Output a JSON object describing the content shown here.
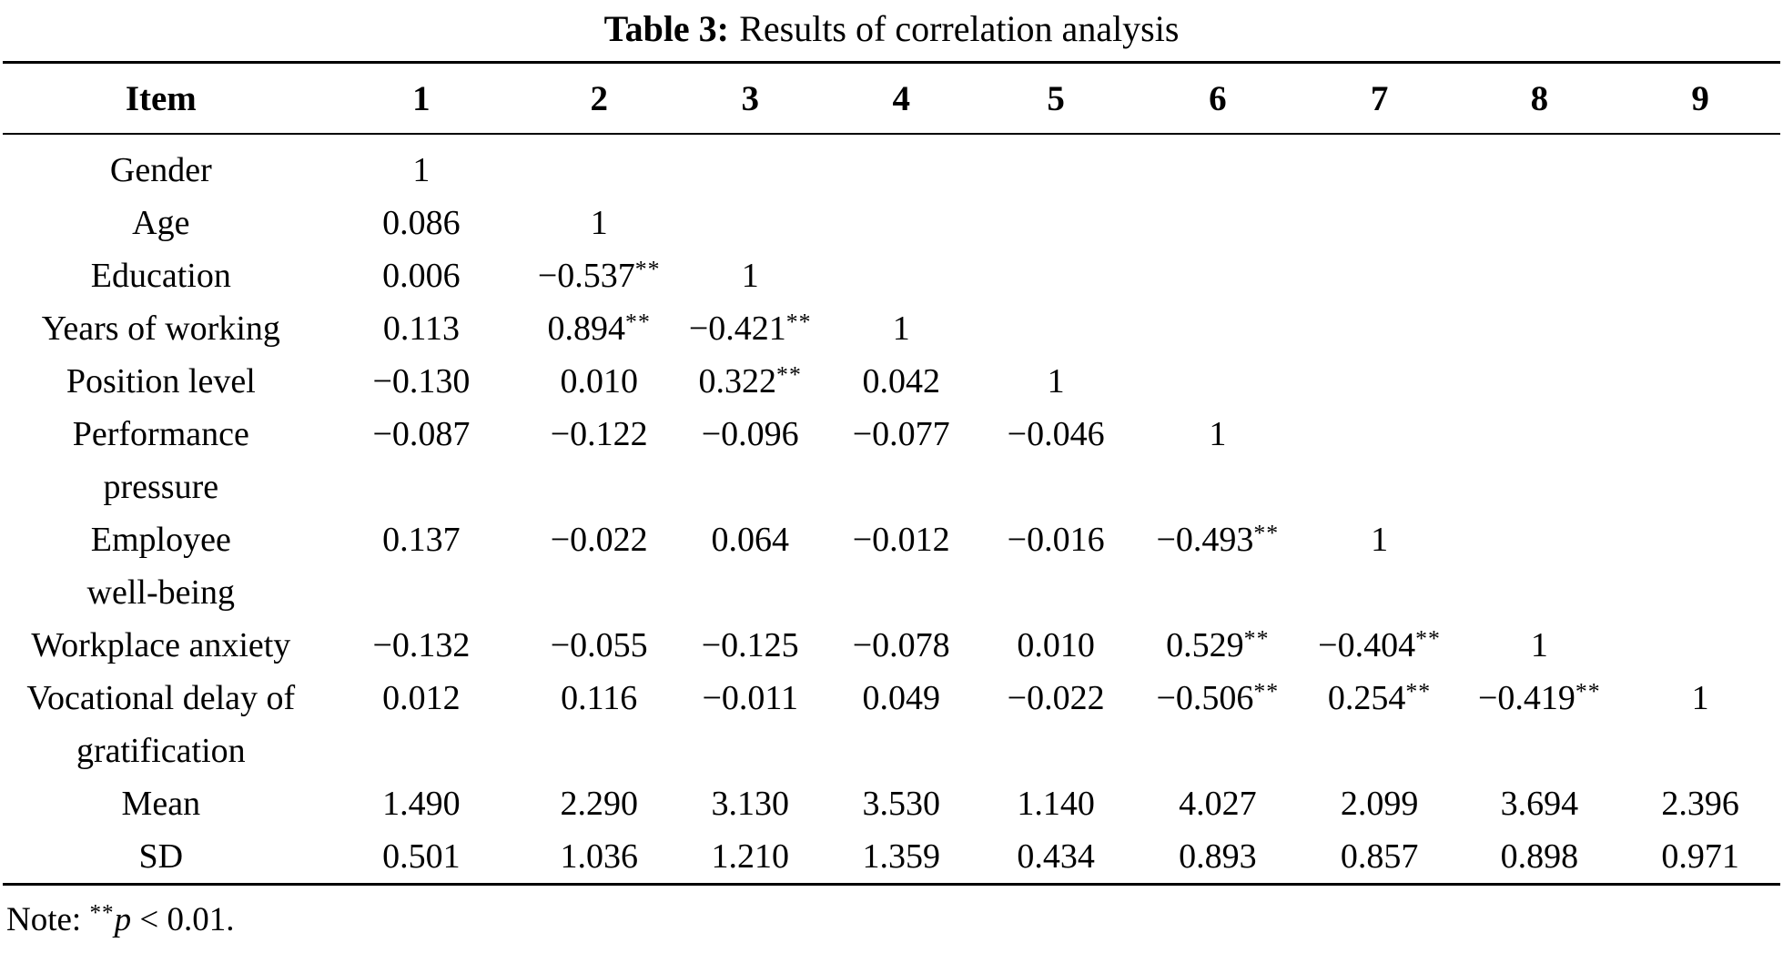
{
  "title": {
    "label": "Table 3:",
    "text": "Results of correlation analysis"
  },
  "table": {
    "columns": [
      "Item",
      "1",
      "2",
      "3",
      "4",
      "5",
      "6",
      "7",
      "8",
      "9"
    ],
    "col_widths_pct": [
      17.8,
      11.5,
      8.5,
      8.5,
      8.5,
      8.9,
      9.3,
      8.9,
      9.1,
      9.0
    ],
    "rows": [
      {
        "label_lines": [
          "Gender"
        ],
        "values": [
          "1"
        ]
      },
      {
        "label_lines": [
          "Age"
        ],
        "values": [
          "0.086",
          "1"
        ]
      },
      {
        "label_lines": [
          "Education"
        ],
        "values": [
          "0.006",
          "−0.537**",
          "1"
        ]
      },
      {
        "label_lines": [
          "Years of working"
        ],
        "values": [
          "0.113",
          "0.894**",
          "−0.421**",
          "1"
        ]
      },
      {
        "label_lines": [
          "Position level"
        ],
        "values": [
          "−0.130",
          "0.010",
          "0.322**",
          "0.042",
          "1"
        ]
      },
      {
        "label_lines": [
          "Performance",
          "pressure"
        ],
        "values": [
          "−0.087",
          "−0.122",
          "−0.096",
          "−0.077",
          "−0.046",
          "1"
        ]
      },
      {
        "label_lines": [
          "Employee",
          "well-being"
        ],
        "values": [
          "0.137",
          "−0.022",
          "0.064",
          "−0.012",
          "−0.016",
          "−0.493**",
          "1"
        ]
      },
      {
        "label_lines": [
          "Workplace anxiety"
        ],
        "values": [
          "−0.132",
          "−0.055",
          "−0.125",
          "−0.078",
          "0.010",
          "0.529**",
          "−0.404**",
          "1"
        ]
      },
      {
        "label_lines": [
          "Vocational delay of",
          "gratification"
        ],
        "values": [
          "0.012",
          "0.116",
          "−0.011",
          "0.049",
          "−0.022",
          "−0.506**",
          "0.254**",
          "−0.419**",
          "1"
        ]
      },
      {
        "label_lines": [
          "Mean"
        ],
        "values": [
          "1.490",
          "2.290",
          "3.130",
          "3.530",
          "1.140",
          "4.027",
          "2.099",
          "3.694",
          "2.396"
        ]
      },
      {
        "label_lines": [
          "SD"
        ],
        "values": [
          "0.501",
          "1.036",
          "1.210",
          "1.359",
          "0.434",
          "0.893",
          "0.857",
          "0.898",
          "0.971"
        ]
      }
    ],
    "significance_marker": "**"
  },
  "note": {
    "prefix": "Note: ",
    "stars": "**",
    "p_symbol": "p",
    "suffix": " < 0.01."
  }
}
